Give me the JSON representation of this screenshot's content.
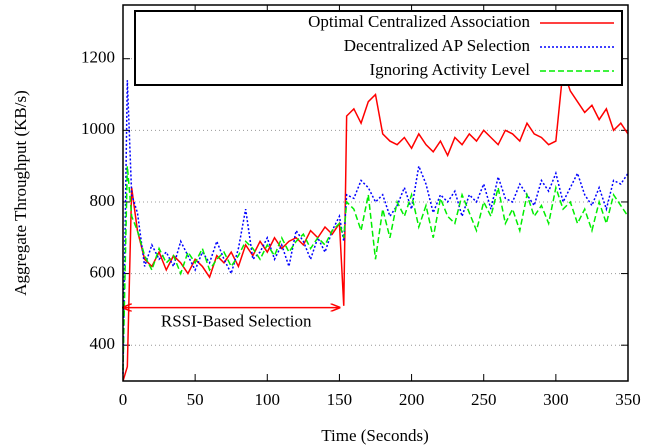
{
  "chart_data": {
    "type": "line",
    "x_label": "Time (Seconds)",
    "y_label": "Aggregate Throughput (KB/s)",
    "x": [
      0,
      3,
      6,
      10,
      15,
      20,
      25,
      30,
      35,
      40,
      45,
      50,
      55,
      60,
      65,
      70,
      75,
      80,
      85,
      90,
      95,
      100,
      105,
      110,
      115,
      120,
      125,
      130,
      135,
      140,
      145,
      150,
      153,
      155,
      160,
      165,
      170,
      175,
      180,
      185,
      190,
      195,
      200,
      205,
      210,
      215,
      220,
      225,
      230,
      235,
      240,
      245,
      250,
      255,
      260,
      265,
      270,
      275,
      280,
      285,
      290,
      295,
      300,
      305,
      310,
      315,
      320,
      325,
      330,
      335,
      340,
      345,
      350
    ],
    "series": [
      {
        "name": "Optimal Centralized Association",
        "color": "#ff0000",
        "style": "solid",
        "values": [
          300,
          340,
          840,
          720,
          640,
          620,
          660,
          610,
          650,
          630,
          600,
          640,
          620,
          590,
          650,
          630,
          660,
          620,
          680,
          650,
          690,
          660,
          700,
          670,
          690,
          700,
          680,
          720,
          700,
          730,
          710,
          740,
          510,
          1040,
          1060,
          1020,
          1080,
          1100,
          990,
          970,
          960,
          980,
          950,
          990,
          960,
          940,
          970,
          930,
          980,
          960,
          990,
          970,
          1000,
          980,
          960,
          1000,
          990,
          970,
          1020,
          990,
          980,
          960,
          970,
          1170,
          1110,
          1080,
          1050,
          1070,
          1030,
          1060,
          1000,
          1020,
          990
        ]
      },
      {
        "name": "Decentralized AP Selection",
        "color": "#0000ff",
        "style": "dotted",
        "values": [
          320,
          1140,
          820,
          770,
          620,
          680,
          640,
          660,
          620,
          690,
          650,
          610,
          660,
          630,
          690,
          640,
          600,
          670,
          780,
          640,
          660,
          700,
          640,
          680,
          620,
          720,
          690,
          640,
          700,
          660,
          720,
          760,
          690,
          820,
          810,
          860,
          840,
          800,
          820,
          760,
          790,
          840,
          780,
          900,
          850,
          770,
          820,
          800,
          830,
          760,
          820,
          800,
          850,
          780,
          870,
          810,
          800,
          850,
          820,
          790,
          860,
          830,
          880,
          800,
          840,
          880,
          820,
          790,
          840,
          780,
          860,
          850,
          880
        ]
      },
      {
        "name": "Ignoring Activity Level",
        "color": "#00ee00",
        "style": "dashed",
        "values": [
          330,
          900,
          760,
          720,
          650,
          610,
          670,
          630,
          650,
          600,
          660,
          630,
          670,
          610,
          640,
          660,
          620,
          650,
          690,
          670,
          640,
          680,
          650,
          700,
          660,
          690,
          710,
          670,
          700,
          680,
          720,
          740,
          700,
          800,
          780,
          720,
          820,
          640,
          780,
          700,
          800,
          760,
          820,
          730,
          790,
          700,
          810,
          760,
          740,
          820,
          770,
          720,
          800,
          760,
          840,
          740,
          780,
          720,
          820,
          760,
          790,
          740,
          840,
          780,
          800,
          740,
          780,
          720,
          800,
          740,
          820,
          790,
          760
        ]
      }
    ],
    "xlim": [
      0,
      350
    ],
    "xticks": [
      0,
      50,
      100,
      150,
      200,
      250,
      300,
      350
    ],
    "ylim": [
      300,
      1350
    ],
    "yticks": [
      400,
      600,
      800,
      1000,
      1200
    ],
    "grid": true,
    "legend": "top-right",
    "annotation": {
      "text": "RSSI-Based Selection",
      "x_range": [
        0,
        150
      ],
      "y": 505,
      "color": "#ff0000"
    }
  }
}
